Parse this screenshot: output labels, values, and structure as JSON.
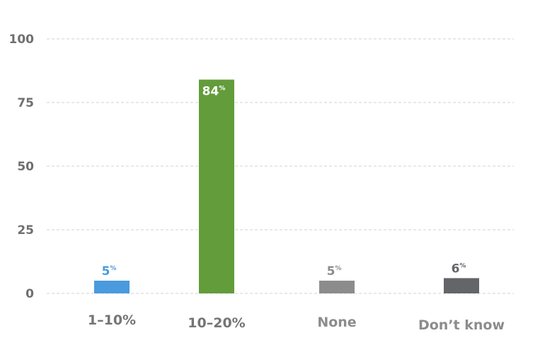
{
  "chart_data": {
    "type": "bar",
    "categories": [
      "1–10%",
      "10–20%",
      "None",
      "Don’t know"
    ],
    "values": [
      5,
      84,
      5,
      6
    ],
    "value_labels": [
      "5",
      "84",
      "5",
      "6"
    ],
    "value_suffix": "%",
    "ylim": [
      0,
      100
    ],
    "yticks": [
      0,
      25,
      50,
      75,
      100
    ],
    "grid": true,
    "colors": [
      "#4a9ade",
      "#639c3b",
      "#8c8c8c",
      "#636569"
    ],
    "label_colors": [
      "#4a9ade",
      "#ffffff",
      "#8c8c8c",
      "#636569"
    ],
    "category_label_colors": [
      "#757575",
      "#757575",
      "#8c8c8c",
      "#8c8c8c"
    ]
  }
}
